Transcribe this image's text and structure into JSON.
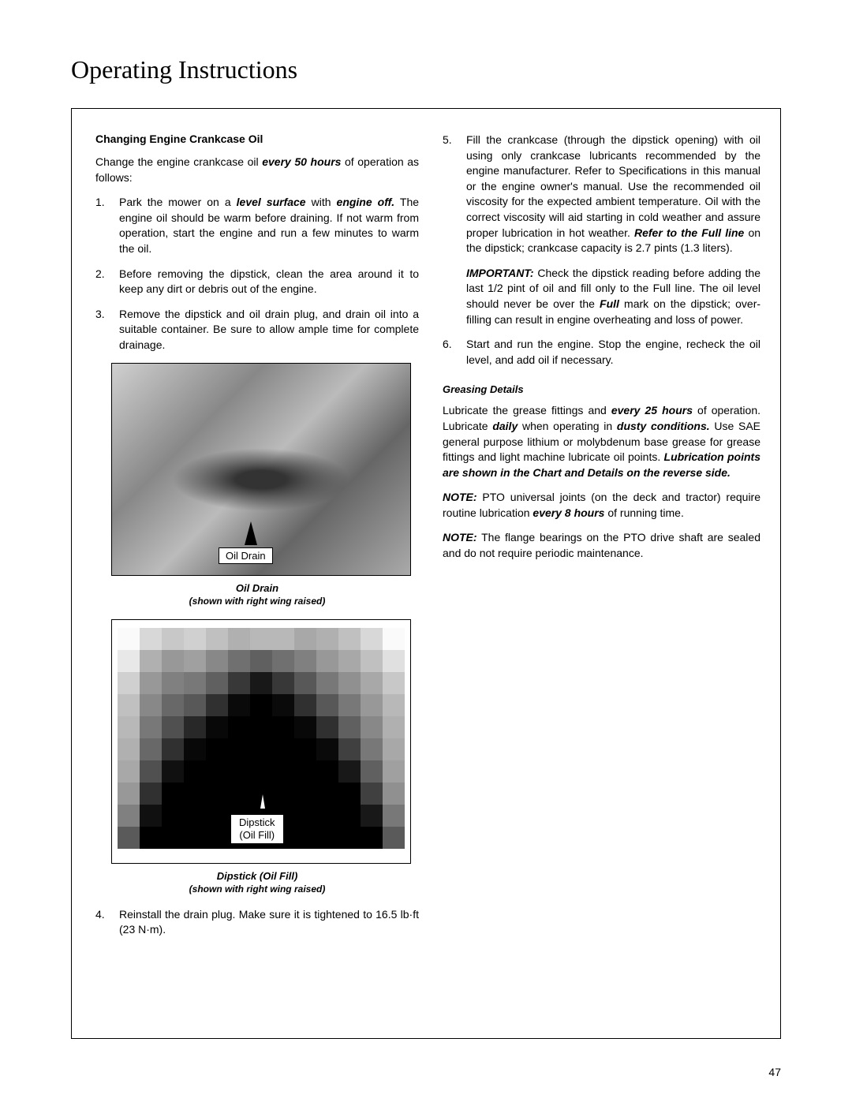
{
  "page_title": "Operating Instructions",
  "page_number": "47",
  "left": {
    "heading": "Changing Engine Crankcase Oil",
    "intro": "Change the engine crankcase oil",
    "intro_bold": "every 50 hours",
    "intro_end": "of operation as follows:",
    "item1_num": "1.",
    "item1_a": "Park the mower on a",
    "item1_bold1": "level surface",
    "item1_b": "with",
    "item1_bold2": "engine off.",
    "item1_c": "The engine oil should be warm before draining.  If not warm from operation, start the engine and run a few minutes to warm the oil.",
    "item2_num": "2.",
    "item2": "Before removing the dipstick, clean the area around it to keep any dirt or debris out of the engine.",
    "item3_num": "3.",
    "item3": "Remove the dipstick and oil drain plug, and drain oil into a suitable container. Be sure to allow ample time for complete drainage.",
    "fig1_label": "Oil Drain",
    "fig1_caption": "Oil Drain",
    "fig1_sub": "(shown with right wing raised)",
    "fig2_label1": "Dipstick",
    "fig2_label2": "(Oil Fill)",
    "fig2_caption": "Dipstick (Oil Fill)",
    "fig2_sub": "(shown with right wing raised)",
    "item4_num": "4.",
    "item4": "Reinstall the drain plug.  Make sure it is tightened to 16.5 lb·ft (23 N·m)."
  },
  "right": {
    "item5_num": "5.",
    "item5_a": "Fill the crankcase (through the dipstick opening) with oil using only crankcase lubricants recommended by the engine manufacturer.  Refer to",
    "item5_b": "Specifications in this manual or the engine owner's manual.  Use the recommended oil viscosity for the expected ambient temperature.  Oil with the correct viscosity will aid starting in cold weather and assure proper lubrication in hot weather.",
    "item5_bold": "Refer to the Full line",
    "item5_c": "on the dipstick; crankcase capacity is 2.7 pints (1.3 liters).",
    "important_label": "IMPORTANT:",
    "important_a": "Check the dipstick reading before adding the last 1/2 pint of oil and",
    "important_b": "fill only to the Full line.",
    "important_c": "The oil level should never be over the",
    "important_bold": "Full",
    "important_d": "mark on the dipstick; over-filling can result in engine overheating and loss of power.",
    "item6_num": "6.",
    "item6": "Start and run the engine.  Stop the engine, recheck the oil level, and add oil if necessary.",
    "grease_heading": "Greasing Details",
    "grease_a": "Lubricate the grease fittings and",
    "grease_bold1": "every 25 hours",
    "grease_b": "of operation.  Lubricate",
    "grease_bold2": "daily",
    "grease_c": "when operating in",
    "grease_bold3": "dusty conditions.",
    "grease_d": "Use SAE general purpose lithium or molybdenum base grease for grease fittings and light machine lubricate oil points.",
    "grease_bold4": "Lubrication points are shown",
    "grease_bold5": "in the Chart and Details on the reverse",
    "grease_bold6": "side.",
    "note1_label": "NOTE:",
    "note1_a": "PTO universal joints (on the deck and tractor) require routine lubrication",
    "note1_bold": "every 8 hours",
    "note1_b": "of running time.",
    "note2_label": "NOTE:",
    "note2": "The flange bearings on the PTO drive shaft are sealed and do not require periodic maintenance."
  },
  "pixel_colors": {
    "r1": [
      "#fafafa",
      "#d8d8d8",
      "#c8c8c8",
      "#d0d0d0",
      "#c0c0c0",
      "#b0b0b0",
      "#b8b8b8",
      "#b8b8b8",
      "#a8a8a8",
      "#b0b0b0",
      "#c0c0c0",
      "#d8d8d8",
      "#fafafa"
    ],
    "r2": [
      "#e8e8e8",
      "#b0b0b0",
      "#989898",
      "#a0a0a0",
      "#888888",
      "#707070",
      "#606060",
      "#707070",
      "#808080",
      "#989898",
      "#a8a8a8",
      "#c0c0c0",
      "#e0e0e0"
    ],
    "r3": [
      "#d0d0d0",
      "#989898",
      "#808080",
      "#787878",
      "#606060",
      "#383838",
      "#181818",
      "#383838",
      "#585858",
      "#787878",
      "#909090",
      "#a8a8a8",
      "#c8c8c8"
    ],
    "r4": [
      "#c0c0c0",
      "#888888",
      "#686868",
      "#585858",
      "#303030",
      "#0a0a0a",
      "#000000",
      "#0a0a0a",
      "#303030",
      "#585858",
      "#787878",
      "#989898",
      "#b8b8b8"
    ],
    "r5": [
      "#b8b8b8",
      "#787878",
      "#505050",
      "#282828",
      "#080808",
      "#000000",
      "#000000",
      "#000000",
      "#080808",
      "#303030",
      "#606060",
      "#888888",
      "#b0b0b0"
    ],
    "r6": [
      "#b0b0b0",
      "#686868",
      "#303030",
      "#080808",
      "#000000",
      "#000000",
      "#000000",
      "#000000",
      "#000000",
      "#0a0a0a",
      "#404040",
      "#787878",
      "#a8a8a8"
    ],
    "r7": [
      "#a8a8a8",
      "#505050",
      "#101010",
      "#000000",
      "#000000",
      "#000000",
      "#000000",
      "#000000",
      "#000000",
      "#000000",
      "#181818",
      "#606060",
      "#a0a0a0"
    ],
    "r8": [
      "#989898",
      "#303030",
      "#000000",
      "#000000",
      "#000000",
      "#000000",
      "#000000",
      "#000000",
      "#000000",
      "#000000",
      "#000000",
      "#404040",
      "#909090"
    ],
    "r9": [
      "#808080",
      "#101010",
      "#000000",
      "#000000",
      "#000000",
      "#000000",
      "#000000",
      "#000000",
      "#000000",
      "#000000",
      "#000000",
      "#181818",
      "#787878"
    ],
    "r10": [
      "#5a5a5a",
      "#000000",
      "#000000",
      "#000000",
      "#000000",
      "#000000",
      "#000000",
      "#000000",
      "#000000",
      "#000000",
      "#000000",
      "#000000",
      "#5a5a5a"
    ]
  }
}
